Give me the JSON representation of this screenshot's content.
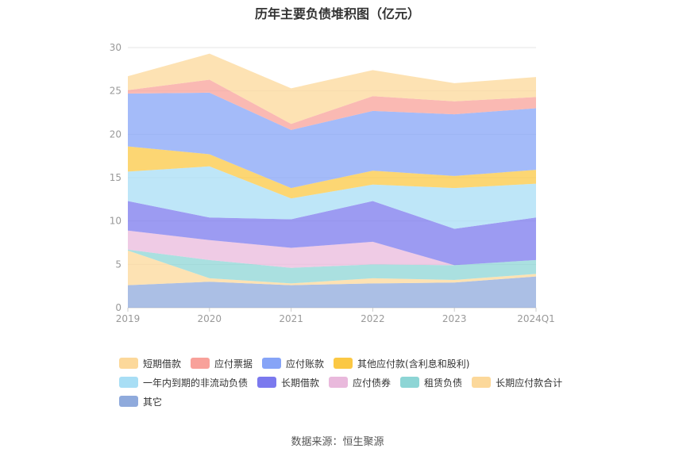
{
  "chart_data": {
    "type": "area",
    "stacked": true,
    "title": "历年主要负债堆积图（亿元）",
    "categories": [
      "2019",
      "2020",
      "2021",
      "2022",
      "2023",
      "2024Q1"
    ],
    "ylim": [
      0,
      30
    ],
    "yticks": [
      0,
      5,
      10,
      15,
      20,
      25,
      30
    ],
    "grid": true,
    "legend_position": "bottom",
    "series": [
      {
        "name": "其它",
        "color": "#8faadc",
        "values": [
          2.6,
          3.0,
          2.6,
          2.8,
          2.9,
          3.6
        ]
      },
      {
        "name": "长期应付款合计",
        "color": "#fcd89a",
        "values": [
          4.0,
          0.4,
          0.2,
          0.6,
          0.3,
          0.3
        ]
      },
      {
        "name": "租赁负债",
        "color": "#8dd5d5",
        "values": [
          0.1,
          2.1,
          1.8,
          1.6,
          1.7,
          1.6
        ]
      },
      {
        "name": "应付债券",
        "color": "#e9b9dc",
        "values": [
          2.2,
          2.3,
          2.3,
          2.6,
          0.0,
          0.0
        ]
      },
      {
        "name": "长期借款",
        "color": "#7b79ee",
        "values": [
          3.4,
          2.6,
          3.3,
          4.7,
          4.2,
          4.9
        ]
      },
      {
        "name": "一年内到期的非流动负债",
        "color": "#a8def5",
        "values": [
          3.4,
          5.9,
          2.4,
          1.9,
          4.7,
          3.9
        ]
      },
      {
        "name": "其他应付款(含利息和股利)",
        "color": "#fbc844",
        "values": [
          2.9,
          1.4,
          1.2,
          1.6,
          1.4,
          1.6
        ]
      },
      {
        "name": "应付账款",
        "color": "#86a4f7",
        "values": [
          6.1,
          7.1,
          6.7,
          6.9,
          7.1,
          7.1
        ]
      },
      {
        "name": "应付票据",
        "color": "#f8a19a",
        "values": [
          0.4,
          1.5,
          0.7,
          1.7,
          1.5,
          1.3
        ]
      },
      {
        "name": "短期借款",
        "color": "#fcd89a",
        "values": [
          1.6,
          3.0,
          4.1,
          3.0,
          2.1,
          2.3
        ]
      }
    ]
  },
  "legend": {
    "rows": [
      [
        {
          "label": "短期借款",
          "color": "#fcd89a"
        },
        {
          "label": "应付票据",
          "color": "#f8a19a"
        },
        {
          "label": "应付账款",
          "color": "#86a4f7"
        },
        {
          "label": "其他应付款(含利息和股利)",
          "color": "#fbc844"
        }
      ],
      [
        {
          "label": "一年内到期的非流动负债",
          "color": "#a8def5"
        },
        {
          "label": "长期借款",
          "color": "#7b79ee"
        },
        {
          "label": "应付债券",
          "color": "#e9b9dc"
        },
        {
          "label": "租赁负债",
          "color": "#8dd5d5"
        },
        {
          "label": "长期应付款合计",
          "color": "#fcd89a"
        }
      ],
      [
        {
          "label": "其它",
          "color": "#8faadc"
        }
      ]
    ]
  },
  "source": "数据来源：恒生聚源"
}
